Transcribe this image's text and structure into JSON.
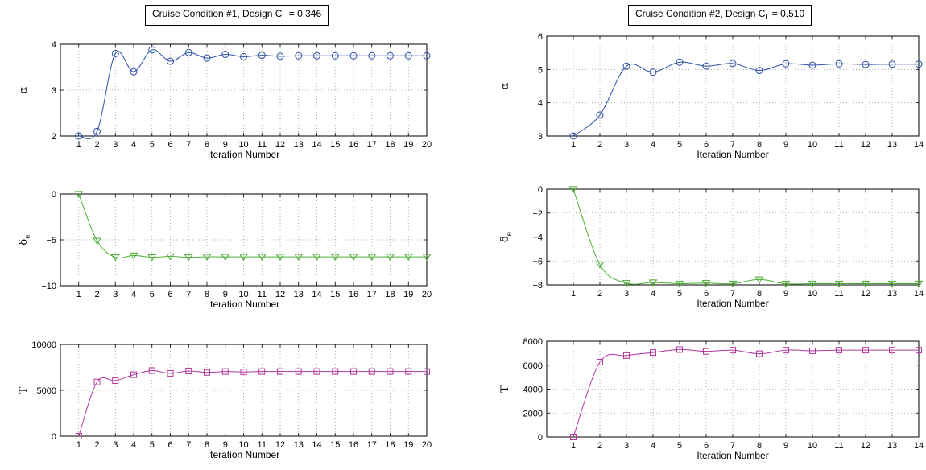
{
  "chart_data": [
    {
      "type": "line",
      "title_main": "Cruise Condition #1, Design C",
      "title_sub": "L",
      "title_tail": " = 0.346",
      "panels": [
        {
          "ylabel": "α",
          "ysub": "",
          "xlabel": "Iteration Number",
          "xlim": [
            0,
            20
          ],
          "ylim": [
            2,
            4
          ],
          "yticks": [
            2,
            3,
            4
          ],
          "xticks": [
            1,
            2,
            3,
            4,
            5,
            6,
            7,
            8,
            9,
            10,
            11,
            12,
            13,
            14,
            15,
            16,
            17,
            18,
            19,
            20
          ],
          "color": "#2a4fa8",
          "marker": "circle",
          "x": [
            1,
            2,
            3,
            4,
            5,
            6,
            7,
            8,
            9,
            10,
            11,
            12,
            13,
            14,
            15,
            16,
            17,
            18,
            19,
            20
          ],
          "y": [
            2.0,
            2.1,
            3.8,
            3.4,
            3.88,
            3.63,
            3.82,
            3.7,
            3.78,
            3.73,
            3.76,
            3.74,
            3.75,
            3.75,
            3.75,
            3.75,
            3.75,
            3.75,
            3.75,
            3.75
          ]
        },
        {
          "ylabel": "δ",
          "ysub": "e",
          "xlabel": "Iteration Number",
          "xlim": [
            0,
            20
          ],
          "ylim": [
            -10,
            0
          ],
          "yticks": [
            -10,
            -5,
            0
          ],
          "xticks": [
            1,
            2,
            3,
            4,
            5,
            6,
            7,
            8,
            9,
            10,
            11,
            12,
            13,
            14,
            15,
            16,
            17,
            18,
            19,
            20
          ],
          "color": "#4caf35",
          "marker": "triangle-down",
          "x": [
            1,
            2,
            3,
            4,
            5,
            6,
            7,
            8,
            9,
            10,
            11,
            12,
            13,
            14,
            15,
            16,
            17,
            18,
            19,
            20
          ],
          "y": [
            0,
            -5.1,
            -6.9,
            -6.7,
            -6.9,
            -6.8,
            -6.9,
            -6.85,
            -6.85,
            -6.85,
            -6.85,
            -6.85,
            -6.85,
            -6.85,
            -6.85,
            -6.85,
            -6.85,
            -6.85,
            -6.85,
            -6.85
          ]
        },
        {
          "ylabel": "T",
          "ysub": "",
          "xlabel": "Iteration Number",
          "xlim": [
            0,
            20
          ],
          "ylim": [
            0,
            10000
          ],
          "yticks": [
            0,
            5000,
            10000
          ],
          "xticks": [
            1,
            2,
            3,
            4,
            5,
            6,
            7,
            8,
            9,
            10,
            11,
            12,
            13,
            14,
            15,
            16,
            17,
            18,
            19,
            20
          ],
          "color": "#b0379e",
          "marker": "square",
          "x": [
            1,
            2,
            3,
            4,
            5,
            6,
            7,
            8,
            9,
            10,
            11,
            12,
            13,
            14,
            15,
            16,
            17,
            18,
            19,
            20
          ],
          "y": [
            0,
            5900,
            6050,
            6700,
            7150,
            6850,
            7100,
            6950,
            7050,
            7000,
            7050,
            7050,
            7050,
            7050,
            7050,
            7050,
            7050,
            7050,
            7050,
            7050
          ]
        }
      ]
    },
    {
      "type": "line",
      "title_main": "Cruise Condition #2, Design C",
      "title_sub": "L",
      "title_tail": " = 0.510",
      "panels": [
        {
          "ylabel": "α",
          "ysub": "",
          "xlabel": "Iteration Number",
          "xlim": [
            0,
            14
          ],
          "ylim": [
            3,
            6
          ],
          "yticks": [
            3,
            4,
            5,
            6
          ],
          "xticks": [
            1,
            2,
            3,
            4,
            5,
            6,
            7,
            8,
            9,
            10,
            11,
            12,
            13,
            14
          ],
          "color": "#2a4fa8",
          "marker": "circle",
          "x": [
            1,
            2,
            3,
            4,
            5,
            6,
            7,
            8,
            9,
            10,
            11,
            12,
            13,
            14
          ],
          "y": [
            3.0,
            3.63,
            5.1,
            4.92,
            5.22,
            5.1,
            5.18,
            4.97,
            5.17,
            5.13,
            5.17,
            5.15,
            5.16,
            5.16
          ]
        },
        {
          "ylabel": "δ",
          "ysub": "e",
          "xlabel": "Iteration Number",
          "xlim": [
            0,
            14
          ],
          "ylim": [
            -8,
            0
          ],
          "yticks": [
            -8,
            -6,
            -4,
            -2,
            0
          ],
          "xticks": [
            1,
            2,
            3,
            4,
            5,
            6,
            7,
            8,
            9,
            10,
            11,
            12,
            13,
            14
          ],
          "color": "#4caf35",
          "marker": "triangle-down",
          "x": [
            1,
            2,
            3,
            4,
            5,
            6,
            7,
            8,
            9,
            10,
            11,
            12,
            13,
            14
          ],
          "y": [
            0,
            -6.3,
            -7.85,
            -7.8,
            -7.9,
            -7.85,
            -7.9,
            -7.55,
            -7.9,
            -7.9,
            -7.9,
            -7.9,
            -7.9,
            -7.9
          ]
        },
        {
          "ylabel": "T",
          "ysub": "",
          "xlabel": "Iteration Number",
          "xlim": [
            0,
            14
          ],
          "ylim": [
            0,
            8000
          ],
          "yticks": [
            0,
            2000,
            4000,
            6000,
            8000
          ],
          "xticks": [
            1,
            2,
            3,
            4,
            5,
            6,
            7,
            8,
            9,
            10,
            11,
            12,
            13,
            14
          ],
          "color": "#b0379e",
          "marker": "square",
          "x": [
            1,
            2,
            3,
            4,
            5,
            6,
            7,
            8,
            9,
            10,
            11,
            12,
            13,
            14
          ],
          "y": [
            0,
            6250,
            6800,
            7050,
            7300,
            7150,
            7250,
            6950,
            7250,
            7200,
            7250,
            7250,
            7250,
            7250
          ]
        }
      ]
    }
  ]
}
